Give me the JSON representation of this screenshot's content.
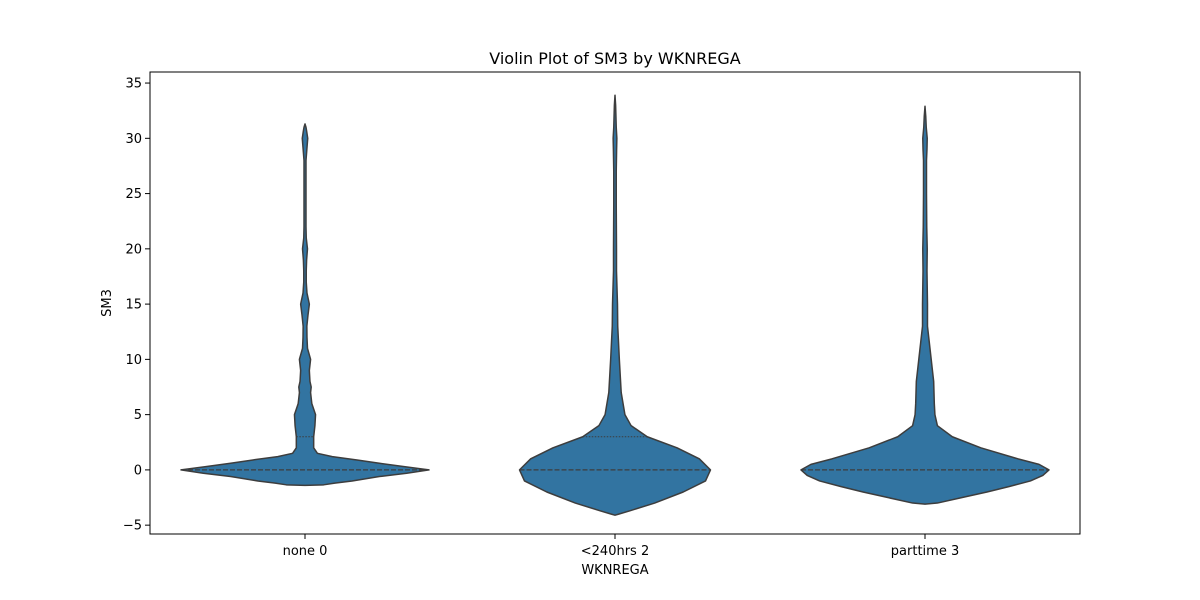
{
  "chart_data": {
    "type": "violin",
    "title": "Violin Plot of SM3 by WKNREGA",
    "xlabel": "WKNREGA",
    "ylabel": "SM3",
    "categories": [
      "none 0",
      "<240hrs 2",
      "parttime 3"
    ],
    "ylim": [
      -5.8,
      36
    ],
    "yticks": [
      -5,
      0,
      5,
      10,
      15,
      20,
      25,
      30,
      35
    ],
    "ytick_labels": [
      "−5",
      "0",
      "5",
      "10",
      "15",
      "20",
      "25",
      "30",
      "35"
    ],
    "grid": false,
    "colors": {
      "fill": "#3274a1",
      "edge": "#3d3d3d",
      "inner": "#3d3d3d"
    },
    "violins": [
      {
        "category": "none 0",
        "median": 0,
        "q1": 0,
        "q3": 3,
        "profile": [
          [
            -1.4,
            0.0
          ],
          [
            -1.35,
            0.15
          ],
          [
            -1.2,
            0.24
          ],
          [
            -1.0,
            0.38
          ],
          [
            -0.6,
            0.6
          ],
          [
            -0.3,
            0.82
          ],
          [
            -0.1,
            0.94
          ],
          [
            0.0,
            1.0
          ],
          [
            0.1,
            0.93
          ],
          [
            0.3,
            0.8
          ],
          [
            0.6,
            0.6
          ],
          [
            0.9,
            0.42
          ],
          [
            1.2,
            0.22
          ],
          [
            1.5,
            0.1
          ],
          [
            2.0,
            0.07
          ],
          [
            3.0,
            0.07
          ],
          [
            3.5,
            0.075
          ],
          [
            4.0,
            0.08
          ],
          [
            5.0,
            0.085
          ],
          [
            6.0,
            0.055
          ],
          [
            7.0,
            0.045
          ],
          [
            7.5,
            0.05
          ],
          [
            8.0,
            0.04
          ],
          [
            9.0,
            0.035
          ],
          [
            10.0,
            0.045
          ],
          [
            11.0,
            0.02
          ],
          [
            12.0,
            0.016
          ],
          [
            13.0,
            0.015
          ],
          [
            14.0,
            0.024
          ],
          [
            15.0,
            0.035
          ],
          [
            16.0,
            0.016
          ],
          [
            17.0,
            0.01
          ],
          [
            18.0,
            0.01
          ],
          [
            19.0,
            0.013
          ],
          [
            20.0,
            0.02
          ],
          [
            21.0,
            0.01
          ],
          [
            22.0,
            0.008
          ],
          [
            25.0,
            0.008
          ],
          [
            28.0,
            0.008
          ],
          [
            29.0,
            0.015
          ],
          [
            30.0,
            0.022
          ],
          [
            30.6,
            0.014
          ],
          [
            31.0,
            0.008
          ],
          [
            31.3,
            0.0
          ]
        ]
      },
      {
        "category": "<240hrs 2",
        "median": 0,
        "q1": 0,
        "q3": 3,
        "profile": [
          [
            -4.1,
            0.0
          ],
          [
            -4.0,
            0.03
          ],
          [
            -3.7,
            0.12
          ],
          [
            -3.0,
            0.32
          ],
          [
            -2.0,
            0.55
          ],
          [
            -1.0,
            0.73
          ],
          [
            0.0,
            0.77
          ],
          [
            1.0,
            0.68
          ],
          [
            2.0,
            0.5
          ],
          [
            3.0,
            0.26
          ],
          [
            4.0,
            0.13
          ],
          [
            5.0,
            0.08
          ],
          [
            7.0,
            0.05
          ],
          [
            10.0,
            0.035
          ],
          [
            13.0,
            0.022
          ],
          [
            15.0,
            0.02
          ],
          [
            18.0,
            0.012
          ],
          [
            20.0,
            0.012
          ],
          [
            24.0,
            0.01
          ],
          [
            27.0,
            0.01
          ],
          [
            29.0,
            0.013
          ],
          [
            30.0,
            0.015
          ],
          [
            31.0,
            0.01
          ],
          [
            33.0,
            0.005
          ],
          [
            33.9,
            0.0
          ]
        ]
      },
      {
        "category": "parttime 3",
        "median": 0,
        "q1": 0,
        "q3": 0,
        "profile": [
          [
            -3.1,
            0.0
          ],
          [
            -3.0,
            0.1
          ],
          [
            -2.5,
            0.3
          ],
          [
            -2.0,
            0.5
          ],
          [
            -1.5,
            0.68
          ],
          [
            -1.0,
            0.85
          ],
          [
            -0.5,
            0.95
          ],
          [
            0.0,
            1.0
          ],
          [
            0.5,
            0.92
          ],
          [
            1.0,
            0.75
          ],
          [
            2.0,
            0.45
          ],
          [
            3.0,
            0.22
          ],
          [
            4.0,
            0.1
          ],
          [
            5.0,
            0.08
          ],
          [
            6.0,
            0.075
          ],
          [
            8.0,
            0.07
          ],
          [
            9.0,
            0.06
          ],
          [
            10.0,
            0.05
          ],
          [
            12.0,
            0.03
          ],
          [
            13.0,
            0.02
          ],
          [
            15.0,
            0.02
          ],
          [
            18.0,
            0.016
          ],
          [
            20.0,
            0.018
          ],
          [
            22.0,
            0.014
          ],
          [
            25.0,
            0.012
          ],
          [
            28.0,
            0.012
          ],
          [
            29.0,
            0.016
          ],
          [
            30.0,
            0.018
          ],
          [
            31.0,
            0.01
          ],
          [
            32.0,
            0.006
          ],
          [
            32.9,
            0.0
          ]
        ]
      }
    ]
  }
}
